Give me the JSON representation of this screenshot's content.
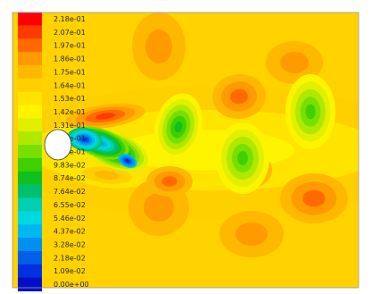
{
  "chart_data": {
    "type": "heatmap",
    "title": "",
    "xlabel": "",
    "ylabel": "",
    "colorbar": {
      "placement": "left",
      "range": [
        0.0,
        0.218
      ],
      "tick_labels": [
        "2.18e-01",
        "2.07e-01",
        "1.97e-01",
        "1.86e-01",
        "1.75e-01",
        "1.64e-01",
        "1.53e-01",
        "1.42e-01",
        "1.31e-01",
        "1.20e-01",
        "1.09e-01",
        "9.83e-02",
        "8.74e-02",
        "7.64e-02",
        "6.55e-02",
        "5.46e-02",
        "4.37e-02",
        "3.28e-02",
        "2.18e-02",
        "1.09e-02",
        "0.00e+00"
      ],
      "colors": [
        "#ff0000",
        "#ff3a00",
        "#ff6a00",
        "#ff9a00",
        "#ffb800",
        "#ffd000",
        "#ffe400",
        "#fff400",
        "#e0f000",
        "#b0e800",
        "#78e000",
        "#40d000",
        "#10c020",
        "#00c070",
        "#00d0b0",
        "#00d8e0",
        "#00b8f0",
        "#0090f0",
        "#0060e8",
        "#0030e0",
        "#0010c8"
      ]
    },
    "field": {
      "background_color": "#ffd200",
      "cylinder_color": "#ffffff"
    }
  }
}
